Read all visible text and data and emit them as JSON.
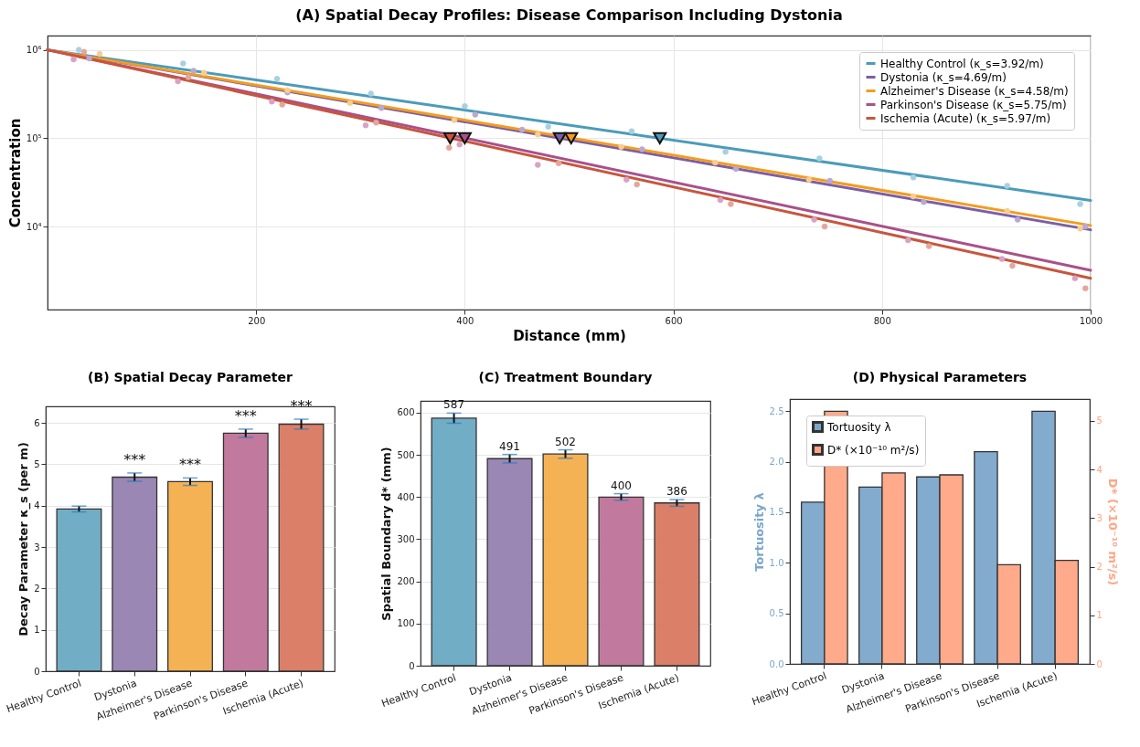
{
  "chart_data": [
    {
      "type": "line",
      "title": "(A) Spatial Decay Profiles: Disease Comparison Including Dystonia",
      "xlabel": "Distance (mm)",
      "ylabel": "Concentration",
      "log": true,
      "grid": true,
      "legend": "top right",
      "xlim": [
        0,
        1000
      ],
      "xticks": [
        200,
        400,
        600,
        800,
        1000
      ],
      "ylim": [
        1150,
        1450000
      ],
      "yticks": [
        {
          "value": 10000,
          "label": "10⁴"
        },
        {
          "value": 100000,
          "label": "10⁵"
        },
        {
          "value": 1000000,
          "label": "10⁶"
        }
      ],
      "series": [
        {
          "type": "scatter",
          "marker": "circle",
          "color": "#a9d0e0",
          "x": [
            30,
            130,
            220,
            310,
            400,
            480,
            560,
            650,
            740,
            830,
            920,
            990
          ],
          "values": [
            1000000,
            700000,
            470000,
            320000,
            230000,
            135000,
            120000,
            70000,
            59000,
            36000,
            29000,
            18000
          ]
        },
        {
          "type": "scatter",
          "marker": "circle",
          "color": "#b9a9d0",
          "x": [
            40,
            140,
            230,
            320,
            410,
            455,
            570,
            660,
            750,
            840,
            930,
            995
          ],
          "values": [
            800000,
            580000,
            330000,
            220000,
            185000,
            125000,
            75000,
            45000,
            33000,
            19000,
            12000,
            10000
          ]
        },
        {
          "type": "scatter",
          "marker": "circle",
          "color": "#f9cd8f",
          "x": [
            50,
            150,
            230,
            290,
            390,
            470,
            550,
            640,
            730,
            830,
            920,
            990
          ],
          "values": [
            900000,
            550000,
            350000,
            250000,
            160000,
            110000,
            80000,
            53000,
            34000,
            22000,
            15000,
            9500
          ]
        },
        {
          "type": "scatter",
          "marker": "circle",
          "color": "#d7a3c4",
          "x": [
            25,
            125,
            215,
            305,
            395,
            470,
            555,
            645,
            735,
            825,
            915,
            985
          ],
          "values": [
            780000,
            440000,
            260000,
            140000,
            85000,
            50000,
            34000,
            20000,
            12000,
            7000,
            4300,
            2600
          ]
        },
        {
          "type": "scatter",
          "marker": "circle",
          "color": "#e4a69a",
          "x": [
            35,
            135,
            225,
            315,
            385,
            490,
            565,
            655,
            745,
            845,
            925,
            995
          ],
          "values": [
            950000,
            490000,
            240000,
            150000,
            78000,
            52000,
            30000,
            18000,
            10000,
            6000,
            3600,
            2000
          ]
        },
        {
          "type": "line",
          "name": "Healthy Control (κ_s=3.92/m)",
          "color": "#4b9bbb",
          "x": [
            0,
            1000
          ],
          "values": [
            1000000,
            19800
          ]
        },
        {
          "type": "line",
          "name": "Dystonia (κ_s=4.69/m)",
          "color": "#7b5ea7",
          "x": [
            0,
            1000
          ],
          "values": [
            1000000,
            9200
          ]
        },
        {
          "type": "line",
          "name": "Alzheimer's Disease (κ_s=4.58/m)",
          "color": "#f39c1f",
          "x": [
            0,
            1000
          ],
          "values": [
            1000000,
            10300
          ]
        },
        {
          "type": "line",
          "name": "Parkinson's Disease (κ_s=5.75/m)",
          "color": "#a8518a",
          "x": [
            0,
            1000
          ],
          "values": [
            1000000,
            3200
          ]
        },
        {
          "type": "line",
          "name": "Ischemia (Acute) (κ_s=5.97/m)",
          "color": "#c8553d",
          "x": [
            0,
            1000
          ],
          "values": [
            1000000,
            2600
          ]
        },
        {
          "type": "scatter",
          "marker": "triangle",
          "colors": [
            "#4b9bbb",
            "#7b5ea7",
            "#f39c1f",
            "#a8518a",
            "#c8553d"
          ],
          "x": [
            587,
            491,
            502,
            400,
            386
          ],
          "values": [
            100000,
            100000,
            100000,
            100000,
            100000
          ]
        }
      ]
    },
    {
      "type": "bar",
      "title": "(B) Spatial Decay Parameter",
      "ylabel": "Decay Parameter κ_s (per m)",
      "grid": "y",
      "categories": [
        "Healthy Control",
        "Dystonia",
        "Alzheimer's Disease",
        "Parkinson's Disease",
        "Ischemia (Acute)"
      ],
      "values": [
        3.92,
        4.69,
        4.58,
        5.75,
        5.97
      ],
      "errors": [
        0.07,
        0.1,
        0.09,
        0.1,
        0.12
      ],
      "colors": [
        "#6aa9c3",
        "#9581b0",
        "#f4ae4c",
        "#be7398",
        "#d97860"
      ],
      "ylim": [
        0,
        6.4
      ],
      "yticks": [
        0,
        1,
        2,
        3,
        4,
        5,
        6
      ],
      "annotations": [
        {
          "text": "***",
          "x": "Dystonia",
          "y": 4.69
        },
        {
          "text": "***",
          "x": "Alzheimer's Disease",
          "y": 4.58
        },
        {
          "text": "***",
          "x": "Parkinson's Disease",
          "y": 5.75
        },
        {
          "text": "***",
          "x": "Ischemia (Acute)",
          "y": 5.97
        }
      ]
    },
    {
      "type": "bar",
      "title": "(C) Treatment Boundary",
      "ylabel": "Spatial Boundary d* (mm)",
      "grid": "y",
      "data_labels": true,
      "categories": [
        "Healthy Control",
        "Dystonia",
        "Alzheimer's Disease",
        "Parkinson's Disease",
        "Ischemia (Acute)"
      ],
      "values": [
        587,
        491,
        502,
        400,
        386
      ],
      "errors": [
        12,
        10,
        10,
        8,
        8
      ],
      "colors": [
        "#6aa9c3",
        "#9581b0",
        "#f4ae4c",
        "#be7398",
        "#d97860"
      ],
      "ylim": [
        0,
        628
      ],
      "yticks": [
        0,
        100,
        200,
        300,
        400,
        500,
        600
      ]
    },
    {
      "type": "bar",
      "title": "(D) Physical Parameters",
      "ylabel": "Tortuosity λ",
      "y2label": "D* (×10⁻¹⁰ m²/s)",
      "legend": "top left",
      "categories": [
        "Healthy Control",
        "Dystonia",
        "Alzheimer's Disease",
        "Parkinson's Disease",
        "Ischemia (Acute)"
      ],
      "ylim": [
        0,
        2.62
      ],
      "yticks": [
        {
          "value": 0,
          "label": "0.0"
        },
        {
          "value": 0.5,
          "label": "0.5"
        },
        {
          "value": 1,
          "label": "1.0"
        },
        {
          "value": 1.5,
          "label": "1.5"
        },
        {
          "value": 2,
          "label": "2.0"
        },
        {
          "value": 2.5,
          "label": "2.5"
        }
      ],
      "y2lim": [
        0,
        5.45
      ],
      "y2ticks": [
        0,
        1,
        2,
        3,
        4,
        5
      ],
      "series": [
        {
          "name": "Tortuosity λ",
          "color": "#7ba6cb",
          "values": [
            1.6,
            1.75,
            1.85,
            2.1,
            2.5
          ]
        },
        {
          "name": "D* (×10⁻¹⁰ m²/s)",
          "color": "#ffa584",
          "axis": "y2",
          "values": [
            5.2,
            3.93,
            3.89,
            2.04,
            2.13
          ]
        }
      ]
    }
  ]
}
